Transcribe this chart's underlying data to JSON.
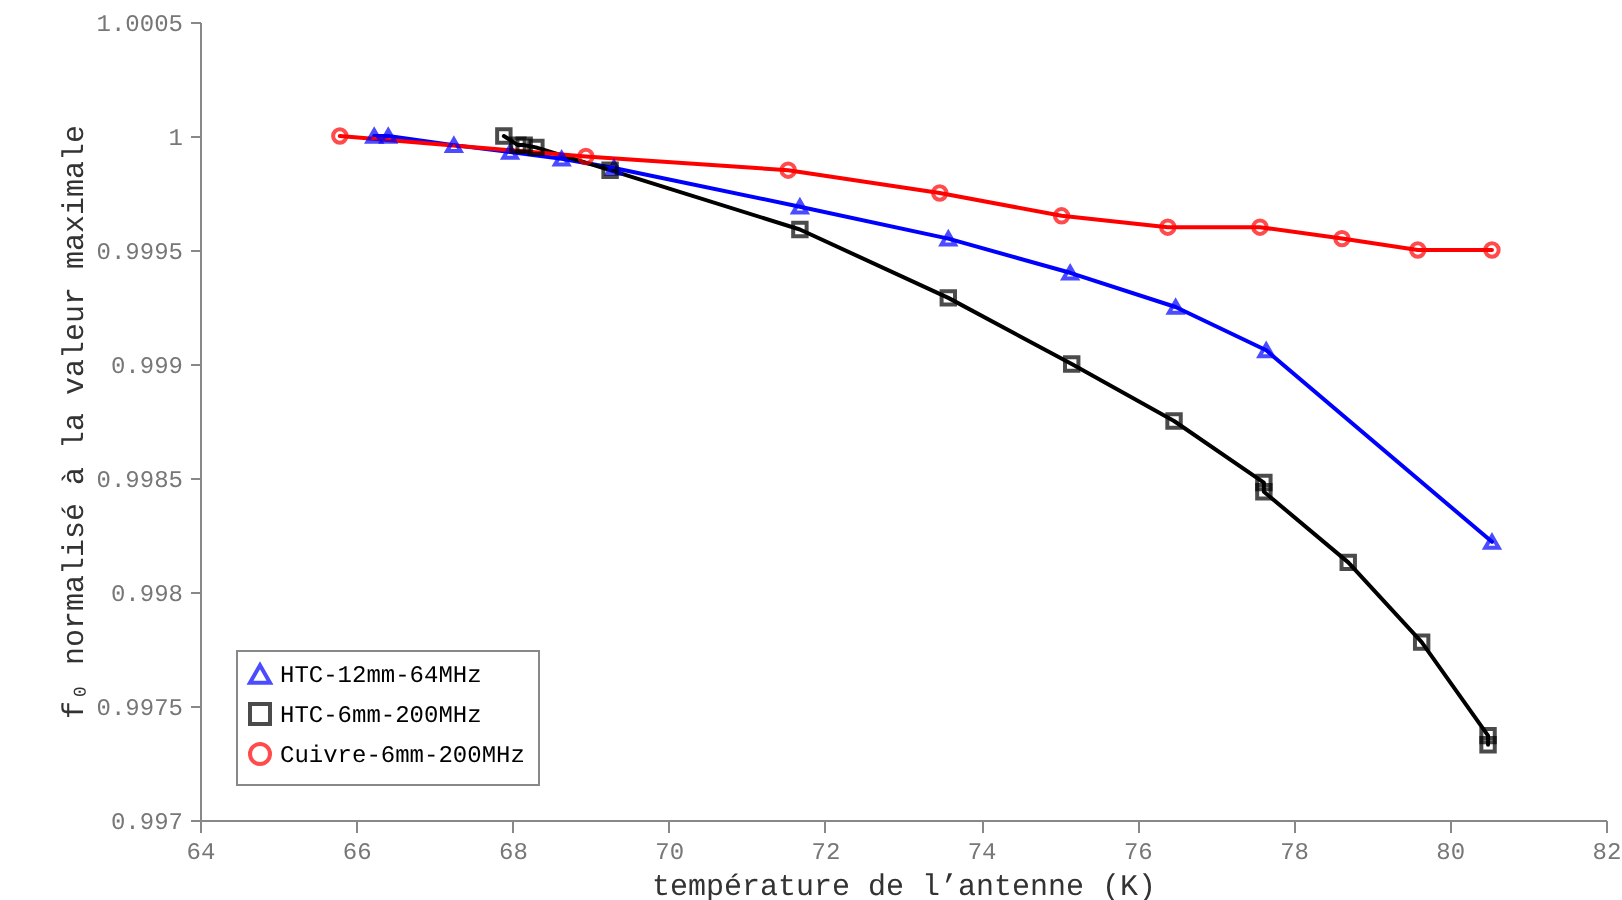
{
  "chart_data": {
    "type": "line",
    "xlabel": "température de l’antenne (K)",
    "ylabel": "f₀ normalisé à la valeur maximale",
    "xlim": [
      64,
      82
    ],
    "xticks": [
      64,
      66,
      68,
      70,
      72,
      74,
      76,
      78,
      80,
      82
    ],
    "ylim": [
      0.997,
      1.0005
    ],
    "yticks": [
      0.997,
      0.9975,
      0.998,
      0.9985,
      0.999,
      0.9995,
      1,
      1.0005
    ],
    "legend": "bottom left",
    "grid": false,
    "series": [
      {
        "name": "HTC-12mm-64MHz",
        "color": "#0000ff",
        "marker": "triangle",
        "x": [
          66.23,
          66.41,
          67.25,
          67.97,
          68.63,
          69.3,
          71.68,
          73.58,
          75.14,
          76.49,
          77.65,
          80.54
        ],
        "values": [
          1.0,
          1.0,
          0.99996,
          0.99993,
          0.9999,
          0.99986,
          0.99969,
          0.99955,
          0.9994,
          0.99925,
          0.99906,
          0.99822
        ]
      },
      {
        "name": "HTC-6mm-200MHz",
        "color": "#000000",
        "marker": "square",
        "x": [
          67.89,
          68.07,
          68.15,
          68.3,
          69.25,
          71.68,
          73.58,
          75.16,
          76.47,
          77.62,
          77.62,
          78.7,
          79.64,
          80.49,
          80.49
        ],
        "values": [
          1.0,
          0.99996,
          0.99996,
          0.99995,
          0.99985,
          0.99959,
          0.99929,
          0.999,
          0.99875,
          0.99848,
          0.99844,
          0.99813,
          0.99778,
          0.99737,
          0.99733
        ]
      },
      {
        "name": "Cuivre-6mm-200MHz",
        "color": "#ff0000",
        "marker": "circle",
        "x": [
          65.79,
          68.94,
          71.53,
          73.47,
          75.03,
          76.39,
          77.57,
          78.62,
          79.59,
          80.54
        ],
        "values": [
          1.0,
          0.99991,
          0.99985,
          0.99975,
          0.99965,
          0.9996,
          0.9996,
          0.99955,
          0.9995,
          0.9995
        ]
      }
    ]
  }
}
